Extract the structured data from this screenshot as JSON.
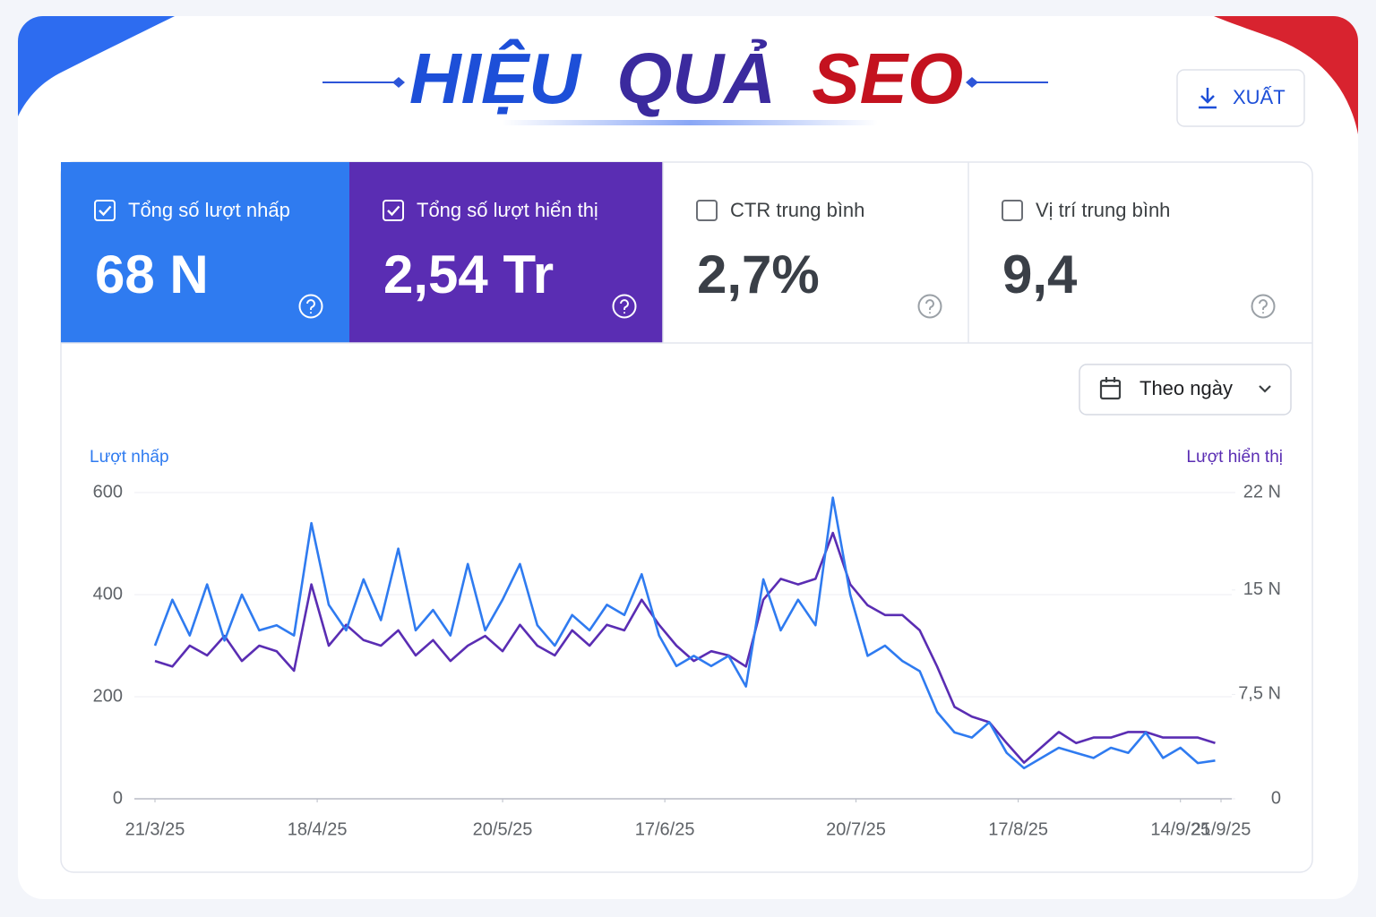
{
  "header": {
    "title_words": [
      "HIỆU",
      "QUẢ",
      "SEO"
    ],
    "export_label": "XUẤT"
  },
  "metrics": [
    {
      "label": "Tổng số lượt nhấp",
      "value": "68 N",
      "checked": true
    },
    {
      "label": "Tổng số lượt hiển thị",
      "value": "2,54 Tr",
      "checked": true
    },
    {
      "label": "CTR trung bình",
      "value": "2,7%",
      "checked": false
    },
    {
      "label": "Vị trí trung bình",
      "value": "9,4",
      "checked": false
    }
  ],
  "controls": {
    "granularity": "Theo ngày"
  },
  "chart_data": {
    "type": "line",
    "x": [
      "21/3/25",
      "24/3/25",
      "27/3/25",
      "30/3/25",
      "2/4/25",
      "5/4/25",
      "8/4/25",
      "11/4/25",
      "14/4/25",
      "17/4/25",
      "20/4/25",
      "23/4/25",
      "26/4/25",
      "29/4/25",
      "2/5/25",
      "5/5/25",
      "8/5/25",
      "11/5/25",
      "14/5/25",
      "17/5/25",
      "20/5/25",
      "23/5/25",
      "26/5/25",
      "29/5/25",
      "1/6/25",
      "4/6/25",
      "7/6/25",
      "10/6/25",
      "13/6/25",
      "16/6/25",
      "19/6/25",
      "22/6/25",
      "25/6/25",
      "28/6/25",
      "1/7/25",
      "4/7/25",
      "7/7/25",
      "10/7/25",
      "13/7/25",
      "16/7/25",
      "19/7/25",
      "22/7/25",
      "25/7/25",
      "28/7/25",
      "31/7/25",
      "3/8/25",
      "6/8/25",
      "9/8/25",
      "12/8/25",
      "15/8/25",
      "18/8/25",
      "21/8/25",
      "24/8/25",
      "27/8/25",
      "30/8/25",
      "2/9/25",
      "5/9/25",
      "8/9/25",
      "11/9/25",
      "14/9/25",
      "17/9/25",
      "20/9/25"
    ],
    "series": [
      {
        "name": "Lượt nhấp",
        "color": "#2f7bf0",
        "values": [
          300,
          390,
          320,
          420,
          310,
          400,
          330,
          340,
          320,
          540,
          380,
          330,
          430,
          350,
          490,
          330,
          370,
          320,
          460,
          330,
          390,
          460,
          340,
          300,
          360,
          330,
          380,
          360,
          440,
          320,
          260,
          280,
          260,
          280,
          220,
          430,
          330,
          390,
          340,
          590,
          400,
          280,
          300,
          270,
          250,
          170,
          130,
          120,
          150,
          90,
          60,
          80,
          100,
          90,
          80,
          100,
          90,
          130,
          80,
          100,
          70,
          75
        ]
      },
      {
        "name": "Lượt hiển thị",
        "color": "#5a2db3",
        "axis": "y2",
        "values": [
          9900,
          9500,
          11000,
          10300,
          11700,
          9900,
          11000,
          10600,
          9200,
          15400,
          11000,
          12500,
          11400,
          11000,
          12100,
          10300,
          11400,
          9900,
          11000,
          11700,
          10600,
          12500,
          11000,
          10300,
          12100,
          11000,
          12500,
          12100,
          14300,
          12500,
          11000,
          9900,
          10600,
          10300,
          9500,
          14300,
          15800,
          15400,
          15800,
          19100,
          15400,
          13900,
          13200,
          13200,
          12100,
          9500,
          6600,
          5900,
          5500,
          4000,
          2600,
          3700,
          4800,
          4000,
          4400,
          4400,
          4800,
          4800,
          4400,
          4400,
          4400,
          4000
        ]
      }
    ],
    "xticks": [
      "21/3/25",
      "18/4/25",
      "20/5/25",
      "17/6/25",
      "20/7/25",
      "17/8/25",
      "14/9/25",
      "21/9/25"
    ],
    "ylim": [
      0,
      600
    ],
    "yticks": [
      0,
      200,
      400,
      600
    ],
    "y2lim": [
      0,
      22000
    ],
    "y2ticks": [
      0,
      {
        "value": 7500,
        "label": "7,5 N"
      },
      {
        "value": 15000,
        "label": "15 N"
      },
      {
        "value": 22000,
        "label": "22 N"
      }
    ],
    "grid": true
  }
}
